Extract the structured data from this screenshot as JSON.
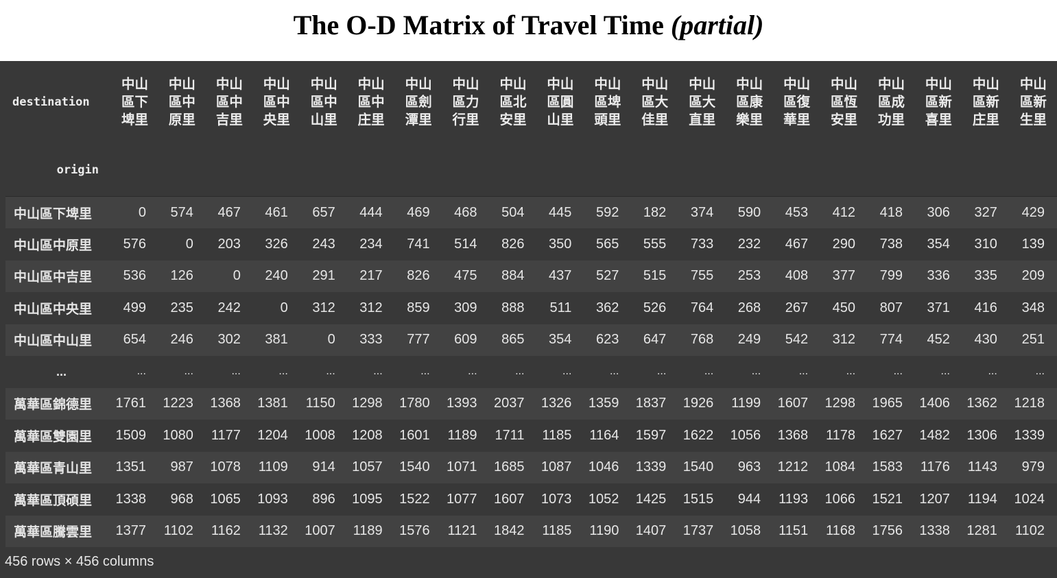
{
  "title": {
    "main": "The O-D Matrix of Travel Time ",
    "suffix": "(partial)"
  },
  "table": {
    "destination_label": "destination",
    "origin_label": "origin",
    "columns": [
      "中山區下埤里",
      "中山區中原里",
      "中山區中吉里",
      "中山區中央里",
      "中山區中山里",
      "中山區中庄里",
      "中山區劍潭里",
      "中山區力行里",
      "中山區北安里",
      "中山區圓山里",
      "中山區埤頭里",
      "中山區大佳里",
      "中山區大直里",
      "中山區康樂里",
      "中山區復華里",
      "中山區恆安里",
      "中山區成功里",
      "中山區新喜里",
      "中山區新庄里",
      "中山區新生里"
    ],
    "rows": [
      {
        "label": "中山區下埤里",
        "values": [
          "0",
          "574",
          "467",
          "461",
          "657",
          "444",
          "469",
          "468",
          "504",
          "445",
          "592",
          "182",
          "374",
          "590",
          "453",
          "412",
          "418",
          "306",
          "327",
          "429"
        ]
      },
      {
        "label": "中山區中原里",
        "values": [
          "576",
          "0",
          "203",
          "326",
          "243",
          "234",
          "741",
          "514",
          "826",
          "350",
          "565",
          "555",
          "733",
          "232",
          "467",
          "290",
          "738",
          "354",
          "310",
          "139"
        ]
      },
      {
        "label": "中山區中吉里",
        "values": [
          "536",
          "126",
          "0",
          "240",
          "291",
          "217",
          "826",
          "475",
          "884",
          "437",
          "527",
          "515",
          "755",
          "253",
          "408",
          "377",
          "799",
          "336",
          "335",
          "209"
        ]
      },
      {
        "label": "中山區中央里",
        "values": [
          "499",
          "235",
          "242",
          "0",
          "312",
          "312",
          "859",
          "309",
          "888",
          "511",
          "362",
          "526",
          "764",
          "268",
          "267",
          "450",
          "807",
          "371",
          "416",
          "348"
        ]
      },
      {
        "label": "中山區中山里",
        "values": [
          "654",
          "246",
          "302",
          "381",
          "0",
          "333",
          "777",
          "609",
          "865",
          "354",
          "623",
          "647",
          "768",
          "249",
          "542",
          "312",
          "774",
          "452",
          "430",
          "251"
        ]
      },
      {
        "label": "...",
        "ellipsis": true,
        "values": [
          "...",
          "...",
          "...",
          "...",
          "...",
          "...",
          "...",
          "...",
          "...",
          "...",
          "...",
          "...",
          "...",
          "...",
          "...",
          "...",
          "...",
          "...",
          "...",
          "..."
        ]
      },
      {
        "label": "萬華區錦德里",
        "values": [
          "1761",
          "1223",
          "1368",
          "1381",
          "1150",
          "1298",
          "1780",
          "1393",
          "2037",
          "1326",
          "1359",
          "1837",
          "1926",
          "1199",
          "1607",
          "1298",
          "1965",
          "1406",
          "1362",
          "1218"
        ]
      },
      {
        "label": "萬華區雙園里",
        "values": [
          "1509",
          "1080",
          "1177",
          "1204",
          "1008",
          "1208",
          "1601",
          "1189",
          "1711",
          "1185",
          "1164",
          "1597",
          "1622",
          "1056",
          "1368",
          "1178",
          "1627",
          "1482",
          "1306",
          "1339"
        ]
      },
      {
        "label": "萬華區青山里",
        "values": [
          "1351",
          "987",
          "1078",
          "1109",
          "914",
          "1057",
          "1540",
          "1071",
          "1685",
          "1087",
          "1046",
          "1339",
          "1540",
          "963",
          "1212",
          "1084",
          "1583",
          "1176",
          "1143",
          "979"
        ]
      },
      {
        "label": "萬華區頂碩里",
        "values": [
          "1338",
          "968",
          "1065",
          "1093",
          "896",
          "1095",
          "1522",
          "1077",
          "1607",
          "1073",
          "1052",
          "1425",
          "1515",
          "944",
          "1193",
          "1066",
          "1521",
          "1207",
          "1194",
          "1024"
        ]
      },
      {
        "label": "萬華區騰雲里",
        "values": [
          "1377",
          "1102",
          "1162",
          "1132",
          "1007",
          "1189",
          "1576",
          "1121",
          "1842",
          "1185",
          "1190",
          "1407",
          "1737",
          "1058",
          "1151",
          "1168",
          "1756",
          "1338",
          "1281",
          "1102"
        ]
      }
    ]
  },
  "footer": "456 rows × 456 columns",
  "colors": {
    "panel_bg": "#383838",
    "row_alt_bg": "#424242",
    "text": "#e6e6e6"
  }
}
